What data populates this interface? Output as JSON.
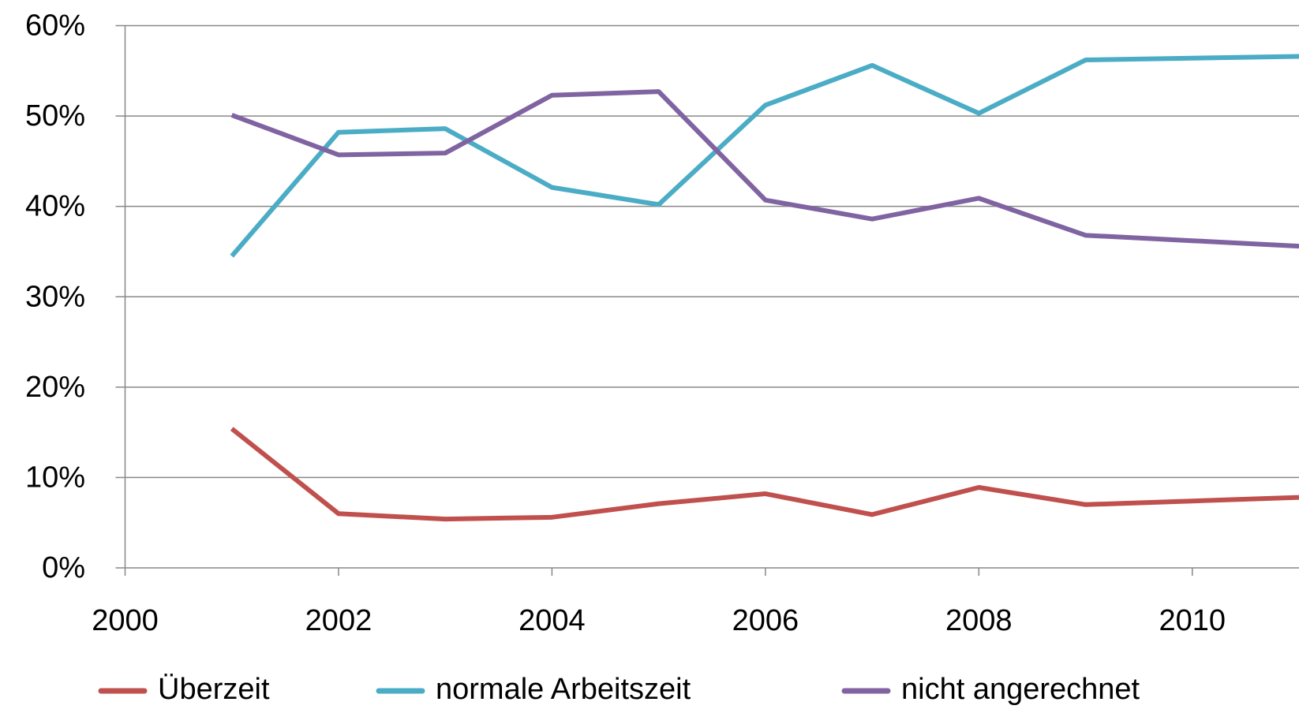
{
  "chart_data": {
    "type": "line",
    "x": [
      2001,
      2002,
      2003,
      2004,
      2005,
      2006,
      2007,
      2008,
      2009,
      2010,
      2011
    ],
    "series": [
      {
        "name": "Überzeit",
        "color": "#c0504d",
        "values": [
          15.4,
          6.0,
          5.4,
          5.6,
          7.1,
          8.2,
          5.9,
          8.9,
          7.0,
          7.4,
          7.8
        ]
      },
      {
        "name": "normale Arbeitszeit",
        "color": "#4bacc6",
        "values": [
          34.5,
          48.2,
          48.6,
          42.1,
          40.2,
          51.2,
          55.6,
          50.3,
          56.2,
          56.4,
          56.6
        ]
      },
      {
        "name": "nicht angerechnet",
        "color": "#8064a2",
        "values": [
          50.1,
          45.7,
          45.9,
          52.3,
          52.7,
          40.7,
          38.6,
          40.9,
          36.8,
          36.2,
          35.6
        ]
      }
    ],
    "xlim": [
      2000,
      2011
    ],
    "xticks": [
      2000,
      2002,
      2004,
      2006,
      2008,
      2010
    ],
    "ylim": [
      0,
      60
    ],
    "yticks": [
      {
        "value": 0,
        "label": "0%"
      },
      {
        "value": 10,
        "label": "10%"
      },
      {
        "value": 20,
        "label": "20%"
      },
      {
        "value": 30,
        "label": "30%"
      },
      {
        "value": 40,
        "label": "40%"
      },
      {
        "value": 50,
        "label": "50%"
      },
      {
        "value": 60,
        "label": "60%"
      }
    ],
    "grid": true,
    "legend": "bottom"
  }
}
